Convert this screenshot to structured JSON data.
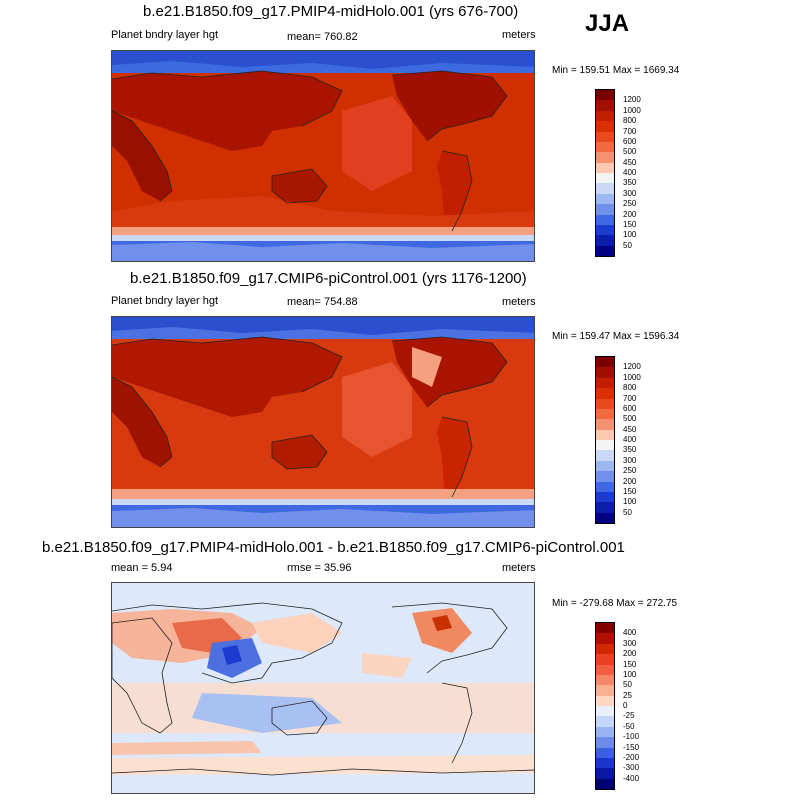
{
  "season": "JJA",
  "panels": [
    {
      "title": "b.e21.B1850.f09_g17.PMIP4-midHolo.001 (yrs 676-700)",
      "left_label": "Planet bndry layer hgt",
      "center_label": "mean= 760.82",
      "right_label": "meters",
      "minmax": "Min = 159.51 Max = 1669.34",
      "levels": [
        "1200",
        "1000",
        "800",
        "700",
        "600",
        "500",
        "450",
        "400",
        "350",
        "300",
        "250",
        "200",
        "150",
        "100",
        "50"
      ]
    },
    {
      "title": "b.e21.B1850.f09_g17.CMIP6-piControl.001 (yrs 1176-1200)",
      "left_label": "Planet bndry layer hgt",
      "center_label": "mean= 754.88",
      "right_label": "meters",
      "minmax": "Min = 159.47 Max = 1596.34",
      "levels": [
        "1200",
        "1000",
        "800",
        "700",
        "600",
        "500",
        "450",
        "400",
        "350",
        "300",
        "250",
        "200",
        "150",
        "100",
        "50"
      ]
    },
    {
      "title": "b.e21.B1850.f09_g17.PMIP4-midHolo.001 - b.e21.B1850.f09_g17.CMIP6-piControl.001",
      "left_label": "mean =   5.94",
      "center_label": "rmse =   35.96",
      "right_label": "meters",
      "minmax": "Min = -279.68 Max = 272.75",
      "levels": [
        "400",
        "300",
        "200",
        "150",
        "100",
        "50",
        "25",
        "0",
        "-25",
        "-50",
        "-100",
        "-150",
        "-200",
        "-300",
        "-400"
      ]
    }
  ],
  "colors": {
    "abs_scale": [
      "#7a0000",
      "#a01000",
      "#c02000",
      "#d83000",
      "#e84a20",
      "#f06a40",
      "#f59070",
      "#fbc8b0",
      "#f4f4f4",
      "#c8d8f5",
      "#9cb8f0",
      "#7090ec",
      "#4068e0",
      "#1c3cd0",
      "#0a1ea8",
      "#000080"
    ],
    "diff_scale": [
      "#800000",
      "#b01000",
      "#d02800",
      "#e84020",
      "#f06040",
      "#f58868",
      "#f9b090",
      "#fcd8c4",
      "#e8f0fc",
      "#c4d6f8",
      "#98b4f0",
      "#6a8ce8",
      "#3c5ee0",
      "#1a36c8",
      "#0818a0",
      "#000070"
    ]
  }
}
